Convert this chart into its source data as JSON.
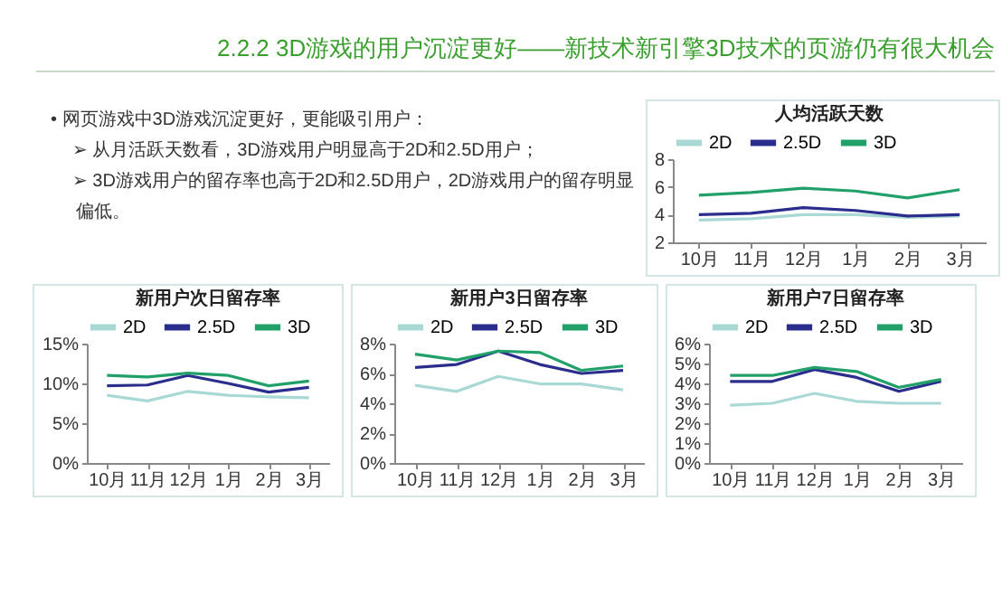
{
  "chart_data": [
    {
      "type": "other",
      "title": "2.2.2 3D游戏的用户沉淀更好——新技术新引擎3D技术的页游仍有很大机会",
      "annotations": [
        "•  网页游戏中3D游戏沉淀更好，更能吸引用户：",
        "➢ 从月活跃天数看，3D游戏用户明显高于2D和2.5D用户；",
        "➢ 3D游戏用户的留存率也高于2D和2.5D用户，2D游戏用户的留存明显偏低。"
      ]
    },
    {
      "type": "line",
      "title": "人均活跃天数",
      "categories": [
        "10月",
        "11月",
        "12月",
        "1月",
        "2月",
        "3月"
      ],
      "ylim": [
        2,
        8
      ],
      "yticks": [
        2,
        4,
        6,
        8
      ],
      "legend": "top",
      "grid": false,
      "series": [
        {
          "name": "2D",
          "color": "#a9d9d4",
          "values": [
            3.6,
            3.7,
            4.0,
            4.0,
            3.8,
            3.9
          ]
        },
        {
          "name": "2.5D",
          "color": "#2b2d8c",
          "values": [
            4.0,
            4.1,
            4.5,
            4.3,
            3.9,
            4.0
          ]
        },
        {
          "name": "3D",
          "color": "#21a06a",
          "values": [
            5.4,
            5.6,
            5.9,
            5.7,
            5.2,
            5.8
          ]
        }
      ]
    },
    {
      "type": "line",
      "title": "新用户次日留存率",
      "categories": [
        "10月",
        "11月",
        "12月",
        "1月",
        "2月",
        "3月"
      ],
      "ylim": [
        0,
        15
      ],
      "yticks": [
        {
          "value": 0,
          "label": "0%"
        },
        {
          "value": 5,
          "label": "5%"
        },
        {
          "value": 10,
          "label": "10%"
        },
        {
          "value": 15,
          "label": "15%"
        }
      ],
      "legend": "top",
      "grid": false,
      "series": [
        {
          "name": "2D",
          "color": "#a9d9d4",
          "values": [
            8.5,
            7.8,
            9.0,
            8.5,
            8.3,
            8.2
          ]
        },
        {
          "name": "2.5D",
          "color": "#2b2d8c",
          "values": [
            9.7,
            9.8,
            11.0,
            10.0,
            8.9,
            9.5
          ]
        },
        {
          "name": "3D",
          "color": "#21a06a",
          "values": [
            11.0,
            10.8,
            11.3,
            11.0,
            9.7,
            10.3
          ]
        }
      ]
    },
    {
      "type": "line",
      "title": "新用户3日留存率",
      "categories": [
        "10月",
        "11月",
        "12月",
        "1月",
        "2月",
        "3月"
      ],
      "ylim": [
        0,
        8
      ],
      "yticks": [
        {
          "value": 0,
          "label": "0%"
        },
        {
          "value": 2,
          "label": "2%"
        },
        {
          "value": 4,
          "label": "4%"
        },
        {
          "value": 6,
          "label": "6%"
        },
        {
          "value": 8,
          "label": "8%"
        }
      ],
      "legend": "top",
      "grid": false,
      "series": [
        {
          "name": "2D",
          "color": "#a9d9d4",
          "values": [
            5.2,
            4.8,
            5.8,
            5.3,
            5.3,
            4.9
          ]
        },
        {
          "name": "2.5D",
          "color": "#2b2d8c",
          "values": [
            6.4,
            6.6,
            7.5,
            6.6,
            6.0,
            6.2
          ]
        },
        {
          "name": "3D",
          "color": "#21a06a",
          "values": [
            7.3,
            6.9,
            7.5,
            7.4,
            6.2,
            6.5
          ]
        }
      ]
    },
    {
      "type": "line",
      "title": "新用户7日留存率",
      "categories": [
        "10月",
        "11月",
        "12月",
        "1月",
        "2月",
        "3月"
      ],
      "ylim": [
        0,
        6
      ],
      "yticks": [
        {
          "value": 0,
          "label": "0%"
        },
        {
          "value": 1,
          "label": "1%"
        },
        {
          "value": 2,
          "label": "2%"
        },
        {
          "value": 3,
          "label": "3%"
        },
        {
          "value": 4,
          "label": "4%"
        },
        {
          "value": 5,
          "label": "5%"
        },
        {
          "value": 6,
          "label": "6%"
        }
      ],
      "legend": "top",
      "grid": false,
      "series": [
        {
          "name": "2D",
          "color": "#a9d9d4",
          "values": [
            2.9,
            3.0,
            3.5,
            3.1,
            3.0,
            3.0
          ]
        },
        {
          "name": "2.5D",
          "color": "#2b2d8c",
          "values": [
            4.1,
            4.1,
            4.7,
            4.3,
            3.6,
            4.1
          ]
        },
        {
          "name": "3D",
          "color": "#21a06a",
          "values": [
            4.4,
            4.4,
            4.8,
            4.6,
            3.8,
            4.2
          ]
        }
      ]
    }
  ]
}
